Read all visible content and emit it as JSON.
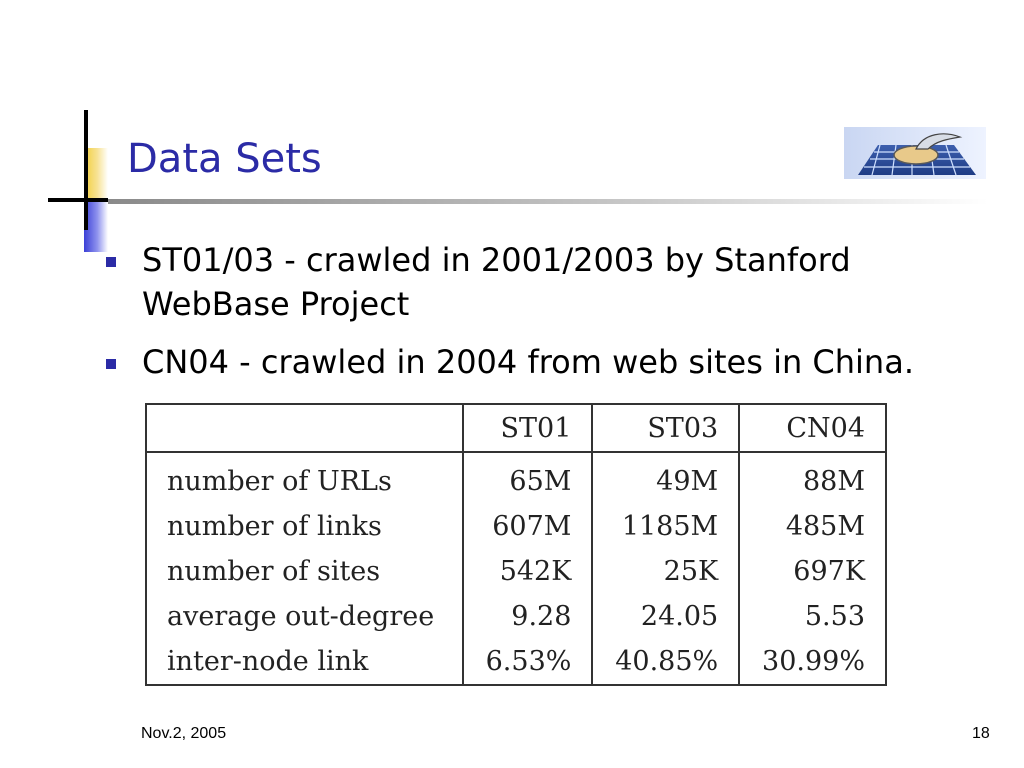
{
  "slide": {
    "title": "Data Sets",
    "bullets": [
      {
        "text": "ST01/03 - crawled in 2001/2003 by Stanford WebBase Project"
      },
      {
        "text": "CN04 - crawled in 2004 from web sites in China."
      }
    ],
    "table": {
      "columns": [
        "",
        "ST01",
        "ST03",
        "CN04"
      ],
      "rows": [
        {
          "label": "number of URLs",
          "values": [
            "65M",
            "49M",
            "88M"
          ]
        },
        {
          "label": "number of links",
          "values": [
            "607M",
            "1185M",
            "485M"
          ]
        },
        {
          "label": "number of sites",
          "values": [
            "542K",
            "25K",
            "697K"
          ]
        },
        {
          "label": "average out-degree",
          "values": [
            "9.28",
            "24.05",
            "5.53"
          ]
        },
        {
          "label": "inter-node link",
          "values": [
            "6.53%",
            "40.85%",
            "30.99%"
          ]
        }
      ]
    },
    "footer": {
      "date": "Nov.2, 2005",
      "page": "18"
    },
    "logo_icon": "conference-logo-icon",
    "colors": {
      "title": "#2b2ba6",
      "bullet": "#2b2ba6",
      "accent_gold": "#f2cf3a"
    }
  }
}
